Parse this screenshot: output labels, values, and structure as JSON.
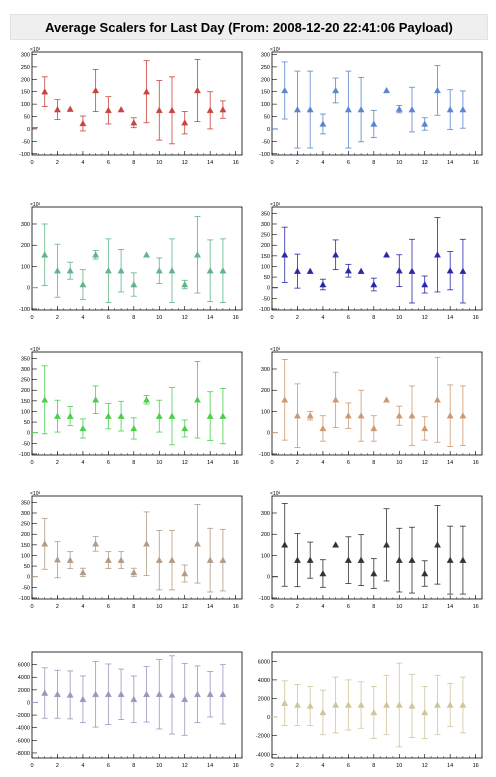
{
  "title": "Average Scalers for Last Day (From: 2008-12-20 22:41:06 Payload)",
  "chart_data": [
    {
      "type": "scatter",
      "color": "#c9443c",
      "marker": "triangle",
      "xlim": [
        0,
        16.5
      ],
      "ylim": [
        -105,
        310
      ],
      "xticks": [
        0,
        2,
        4,
        6,
        8,
        10,
        12,
        14,
        16
      ],
      "yticks": [
        -100,
        -50,
        0,
        50,
        100,
        150,
        200,
        250,
        300
      ],
      "ytick_labels": [
        "-100",
        "-50",
        "0",
        "50",
        "100",
        "150",
        "200",
        "250",
        "300"
      ],
      "multiplier": "×10³",
      "x": [
        0,
        1,
        2,
        3,
        4,
        5,
        6,
        7,
        8,
        9,
        10,
        11,
        12,
        13,
        14,
        15
      ],
      "y": [
        5,
        150,
        78,
        80,
        22,
        155,
        75,
        78,
        25,
        150,
        75,
        75,
        25,
        155,
        75,
        78
      ],
      "err": [
        0,
        60,
        40,
        0,
        30,
        85,
        55,
        0,
        20,
        125,
        120,
        135,
        45,
        125,
        75,
        35
      ]
    },
    {
      "type": "scatter",
      "color": "#5b86cf",
      "marker": "triangle",
      "xlim": [
        0,
        16.5
      ],
      "ylim": [
        -105,
        310
      ],
      "xticks": [
        0,
        2,
        4,
        6,
        8,
        10,
        12,
        14,
        16
      ],
      "yticks": [
        -100,
        -50,
        0,
        50,
        100,
        150,
        200,
        250,
        300
      ],
      "ytick_labels": [
        "-100",
        "-50",
        "0",
        "50",
        "100",
        "150",
        "200",
        "250",
        "300"
      ],
      "multiplier": "×10³",
      "x": [
        0,
        1,
        2,
        3,
        4,
        5,
        6,
        7,
        8,
        9,
        10,
        11,
        12,
        13,
        14,
        15
      ],
      "y": [
        0,
        155,
        78,
        78,
        20,
        155,
        78,
        78,
        20,
        155,
        80,
        78,
        20,
        155,
        78,
        78
      ],
      "err": [
        0,
        115,
        155,
        155,
        40,
        50,
        155,
        130,
        55,
        0,
        15,
        90,
        25,
        100,
        80,
        75
      ]
    },
    {
      "type": "scatter",
      "color": "#5fb48a",
      "marker": "triangle",
      "xlim": [
        0,
        16.5
      ],
      "ylim": [
        -105,
        380
      ],
      "xticks": [
        0,
        2,
        4,
        6,
        8,
        10,
        12,
        14,
        16
      ],
      "yticks": [
        -100,
        0,
        100,
        200,
        300
      ],
      "ytick_labels": [
        "-100",
        "0",
        "100",
        "200",
        "300"
      ],
      "multiplier": "×10³",
      "x": [
        0,
        1,
        2,
        3,
        4,
        5,
        6,
        7,
        8,
        9,
        10,
        11,
        12,
        13,
        14,
        15
      ],
      "y": [
        0,
        155,
        80,
        80,
        15,
        155,
        80,
        80,
        15,
        155,
        80,
        80,
        15,
        155,
        80,
        80
      ],
      "err": [
        0,
        145,
        125,
        40,
        70,
        20,
        150,
        100,
        55,
        0,
        60,
        150,
        20,
        180,
        145,
        150
      ]
    },
    {
      "type": "scatter",
      "color": "#2b28a8",
      "marker": "triangle",
      "xlim": [
        0,
        16.5
      ],
      "ylim": [
        -105,
        380
      ],
      "xticks": [
        0,
        2,
        4,
        6,
        8,
        10,
        12,
        14,
        16
      ],
      "yticks": [
        -100,
        -50,
        0,
        50,
        100,
        150,
        200,
        250,
        300,
        350
      ],
      "ytick_labels": [
        "-100",
        "-50",
        "0",
        "50",
        "100",
        "150",
        "200",
        "250",
        "300",
        "350"
      ],
      "multiplier": "×10³",
      "x": [
        0,
        1,
        2,
        3,
        4,
        5,
        6,
        7,
        8,
        9,
        10,
        11,
        12,
        13,
        14,
        15
      ],
      "y": [
        0,
        155,
        78,
        78,
        15,
        155,
        80,
        78,
        15,
        155,
        80,
        78,
        15,
        155,
        80,
        78
      ],
      "err": [
        0,
        130,
        80,
        0,
        25,
        70,
        30,
        0,
        30,
        0,
        75,
        150,
        40,
        175,
        90,
        150
      ]
    },
    {
      "type": "scatter",
      "color": "#4ccf4c",
      "marker": "triangle",
      "xlim": [
        0,
        16.5
      ],
      "ylim": [
        -105,
        380
      ],
      "xticks": [
        0,
        2,
        4,
        6,
        8,
        10,
        12,
        14,
        16
      ],
      "yticks": [
        -100,
        -50,
        0,
        50,
        100,
        150,
        200,
        250,
        300,
        350
      ],
      "ytick_labels": [
        "-100",
        "-50",
        "0",
        "50",
        "100",
        "150",
        "200",
        "250",
        "300",
        "350"
      ],
      "multiplier": "×10³",
      "x": [
        0,
        1,
        2,
        3,
        4,
        5,
        6,
        7,
        8,
        9,
        10,
        11,
        12,
        13,
        14,
        15
      ],
      "y": [
        0,
        155,
        78,
        78,
        20,
        155,
        78,
        78,
        20,
        155,
        78,
        78,
        20,
        155,
        78,
        78
      ],
      "err": [
        0,
        160,
        75,
        45,
        45,
        65,
        60,
        70,
        50,
        20,
        75,
        135,
        40,
        180,
        115,
        130
      ]
    },
    {
      "type": "scatter",
      "color": "#cf9870",
      "marker": "triangle",
      "xlim": [
        0,
        16.5
      ],
      "ylim": [
        -105,
        380
      ],
      "xticks": [
        0,
        2,
        4,
        6,
        8,
        10,
        12,
        14,
        16
      ],
      "yticks": [
        -100,
        0,
        100,
        200,
        300
      ],
      "ytick_labels": [
        "-100",
        "0",
        "100",
        "200",
        "300"
      ],
      "multiplier": "×10³",
      "x": [
        0,
        1,
        2,
        3,
        4,
        5,
        6,
        7,
        8,
        9,
        10,
        11,
        12,
        13,
        14,
        15
      ],
      "y": [
        0,
        155,
        80,
        80,
        20,
        155,
        80,
        80,
        20,
        155,
        80,
        80,
        20,
        155,
        80,
        80
      ],
      "err": [
        0,
        190,
        150,
        20,
        60,
        130,
        60,
        120,
        60,
        0,
        45,
        140,
        55,
        200,
        145,
        140
      ]
    },
    {
      "type": "scatter",
      "color": "#b49b84",
      "marker": "triangle",
      "xlim": [
        0,
        16.5
      ],
      "ylim": [
        -105,
        380
      ],
      "xticks": [
        0,
        2,
        4,
        6,
        8,
        10,
        12,
        14,
        16
      ],
      "yticks": [
        -100,
        -50,
        0,
        50,
        100,
        150,
        200,
        250,
        300,
        350
      ],
      "ytick_labels": [
        "-100",
        "-50",
        "0",
        "50",
        "100",
        "150",
        "200",
        "250",
        "300",
        "350"
      ],
      "multiplier": "×10³",
      "x": [
        0,
        1,
        2,
        3,
        4,
        5,
        6,
        7,
        8,
        9,
        10,
        11,
        12,
        13,
        14,
        15
      ],
      "y": [
        0,
        155,
        80,
        78,
        20,
        155,
        78,
        78,
        20,
        155,
        78,
        78,
        15,
        155,
        78,
        78
      ],
      "err": [
        0,
        120,
        85,
        40,
        20,
        35,
        40,
        40,
        20,
        150,
        140,
        140,
        40,
        185,
        150,
        145
      ]
    },
    {
      "type": "scatter",
      "color": "#333333",
      "marker": "triangle",
      "xlim": [
        0,
        16.5
      ],
      "ylim": [
        -105,
        380
      ],
      "xticks": [
        0,
        2,
        4,
        6,
        8,
        10,
        12,
        14,
        16
      ],
      "yticks": [
        -100,
        0,
        100,
        200,
        300
      ],
      "ytick_labels": [
        "-100",
        "0",
        "100",
        "200",
        "300"
      ],
      "multiplier": "×10³",
      "x": [
        0,
        1,
        2,
        3,
        4,
        5,
        6,
        7,
        8,
        9,
        10,
        11,
        12,
        13,
        14,
        15
      ],
      "y": [
        0,
        150,
        78,
        78,
        15,
        150,
        78,
        78,
        15,
        150,
        78,
        78,
        15,
        150,
        78,
        78
      ],
      "err": [
        0,
        195,
        125,
        85,
        65,
        0,
        110,
        120,
        70,
        170,
        150,
        155,
        60,
        185,
        160,
        160
      ]
    },
    {
      "type": "scatter",
      "color": "#9a98c0",
      "marker": "triangle",
      "xlim": [
        0,
        16.5
      ],
      "ylim": [
        -8800,
        8000
      ],
      "xticks": [
        0,
        2,
        4,
        6,
        8,
        10,
        12,
        14,
        16
      ],
      "yticks": [
        -8000,
        -6000,
        -4000,
        -2000,
        0,
        2000,
        4000,
        6000
      ],
      "ytick_labels": [
        "-8000",
        "-6000",
        "-4000",
        "-2000",
        "0",
        "2000",
        "4000",
        "6000"
      ],
      "multiplier": "",
      "x": [
        0,
        1,
        2,
        3,
        4,
        5,
        6,
        7,
        8,
        9,
        10,
        11,
        12,
        13,
        14,
        15
      ],
      "y": [
        0,
        1500,
        1300,
        1200,
        500,
        1300,
        1300,
        1300,
        500,
        1300,
        1300,
        1200,
        500,
        1300,
        1300,
        1300
      ],
      "err": [
        0,
        4000,
        3800,
        3800,
        3700,
        5200,
        4800,
        4000,
        3700,
        4400,
        5500,
        6200,
        5700,
        4500,
        3600,
        4700
      ]
    },
    {
      "type": "scatter",
      "color": "#cec59a",
      "marker": "triangle",
      "xlim": [
        0,
        16.5
      ],
      "ylim": [
        -4400,
        7000
      ],
      "xticks": [
        0,
        2,
        4,
        6,
        8,
        10,
        12,
        14,
        16
      ],
      "yticks": [
        -4000,
        -2000,
        0,
        2000,
        4000,
        6000
      ],
      "ytick_labels": [
        "-4000",
        "-2000",
        "0",
        "2000",
        "4000",
        "6000"
      ],
      "multiplier": "",
      "x": [
        0,
        1,
        2,
        3,
        4,
        5,
        6,
        7,
        8,
        9,
        10,
        11,
        12,
        13,
        14,
        15
      ],
      "y": [
        0,
        1500,
        1300,
        1200,
        500,
        1300,
        1300,
        1300,
        500,
        1300,
        1300,
        1200,
        500,
        1300,
        1300,
        1300
      ],
      "err": [
        0,
        2400,
        2200,
        2100,
        2400,
        3000,
        2700,
        2500,
        2800,
        3200,
        4500,
        3400,
        2800,
        3200,
        2300,
        3000
      ]
    }
  ]
}
